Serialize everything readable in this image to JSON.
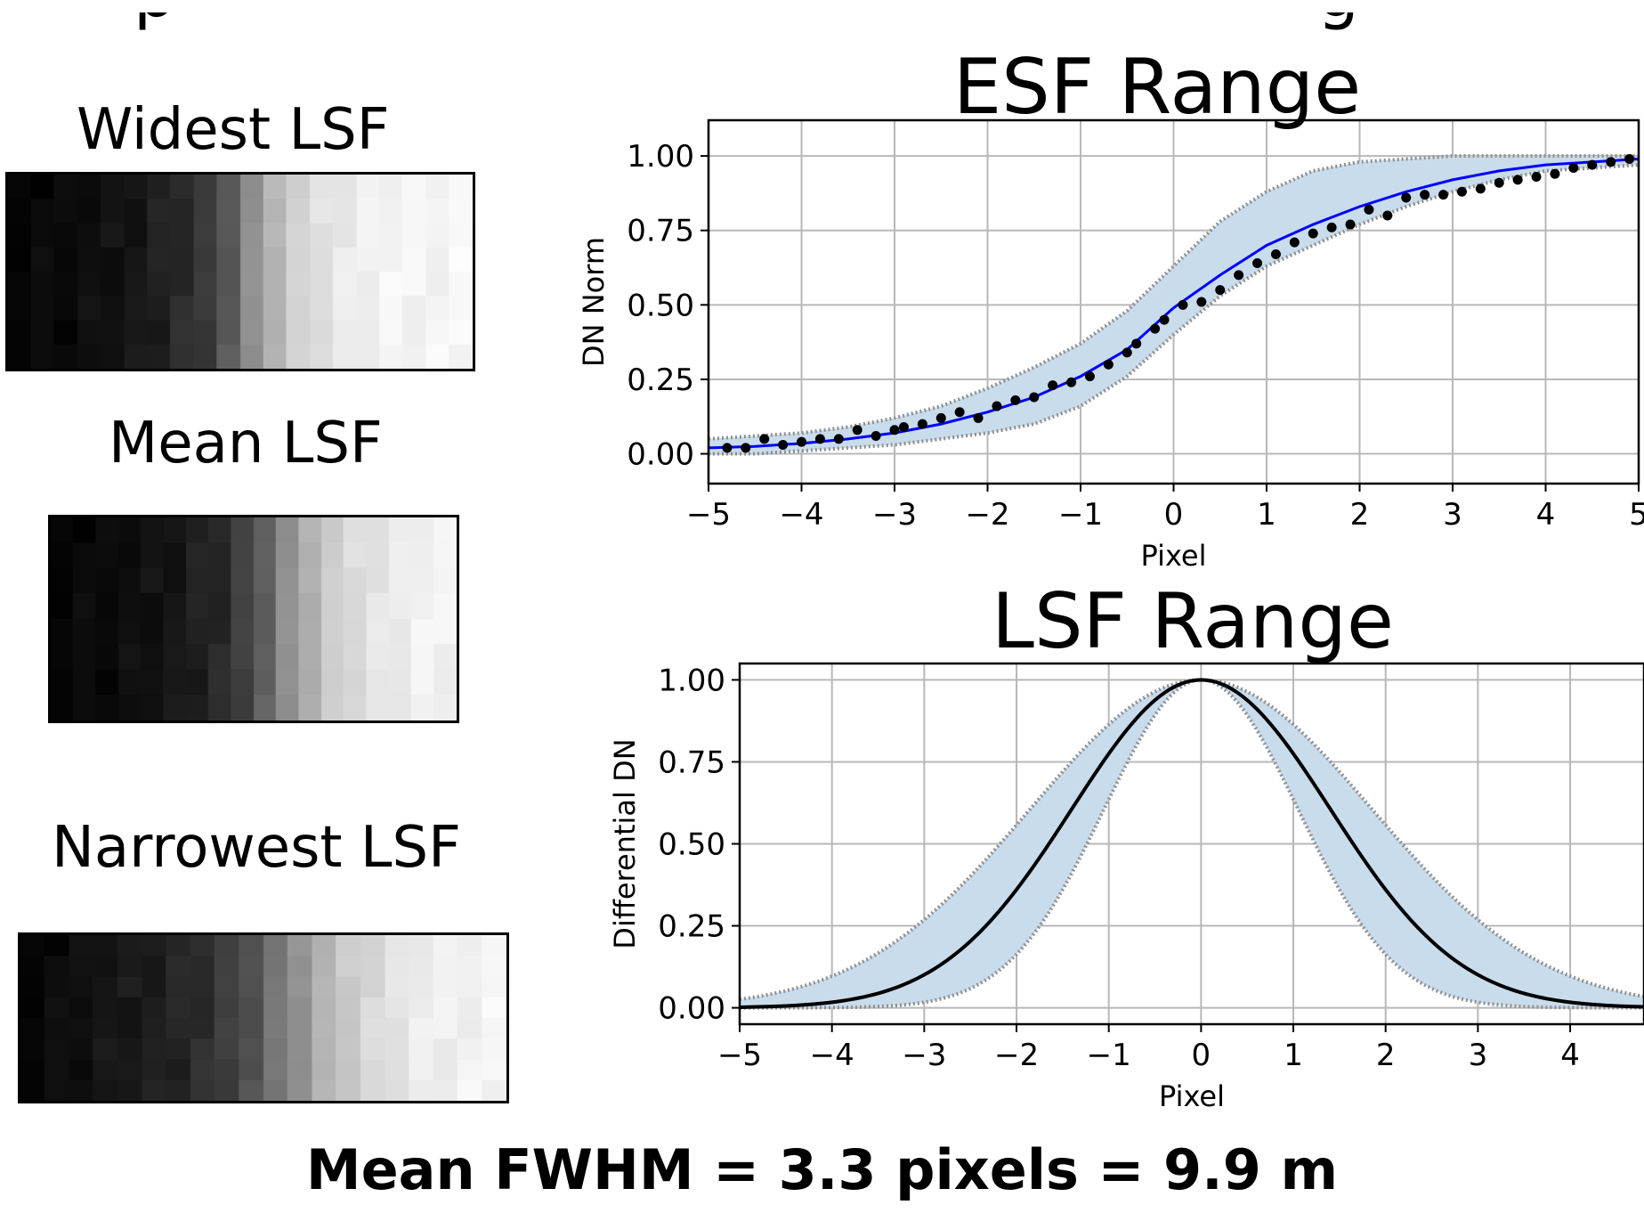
{
  "colors": {
    "band_fill": "#c9dcec",
    "band_edge": "#8f8f8f",
    "fit_line": "#0000ff",
    "lsf_line": "#000000",
    "grid": "#b8b8b8"
  },
  "edge_images": [
    {
      "label": "Widest LSF",
      "columns": [
        0.03,
        0.03,
        0.04,
        0.05,
        0.07,
        0.09,
        0.12,
        0.17,
        0.22,
        0.35,
        0.55,
        0.72,
        0.82,
        0.88,
        0.92,
        0.94,
        0.95,
        0.96,
        0.96,
        0.97
      ]
    },
    {
      "label": "Mean LSF",
      "columns": [
        0.03,
        0.03,
        0.04,
        0.05,
        0.07,
        0.09,
        0.12,
        0.16,
        0.25,
        0.38,
        0.55,
        0.7,
        0.8,
        0.86,
        0.9,
        0.92,
        0.94,
        0.95
      ]
    },
    {
      "label": "Narrowest LSF",
      "columns": [
        0.03,
        0.04,
        0.06,
        0.08,
        0.1,
        0.12,
        0.14,
        0.18,
        0.24,
        0.32,
        0.45,
        0.58,
        0.7,
        0.79,
        0.85,
        0.89,
        0.92,
        0.94,
        0.95,
        0.96
      ]
    }
  ],
  "footer": "Mean FWHM = 3.3 pixels = 9.9 m",
  "chart_data": [
    {
      "type": "line",
      "title": "ESF Range",
      "xlabel": "Pixel",
      "ylabel": "DN Norm",
      "xlim": [
        -5,
        5
      ],
      "ylim": [
        -0.1,
        1.12
      ],
      "xticks": [
        "−5",
        "−4",
        "−3",
        "−2",
        "−1",
        "0",
        "1",
        "2",
        "3",
        "4",
        "5"
      ],
      "yticks": [
        "0.00",
        "0.25",
        "0.50",
        "0.75",
        "1.00"
      ],
      "grid": true,
      "band": {
        "x": [
          -5,
          -4.5,
          -4,
          -3.5,
          -3,
          -2.5,
          -2,
          -1.5,
          -1,
          -0.5,
          0,
          0.5,
          1,
          1.5,
          2,
          2.5,
          3,
          3.5,
          4,
          4.5,
          5
        ],
        "lower": [
          0.0,
          0.0,
          0.01,
          0.02,
          0.03,
          0.05,
          0.07,
          0.1,
          0.16,
          0.26,
          0.4,
          0.53,
          0.63,
          0.7,
          0.77,
          0.83,
          0.88,
          0.92,
          0.95,
          0.96,
          0.97
        ],
        "upper": [
          0.05,
          0.06,
          0.07,
          0.09,
          0.12,
          0.16,
          0.22,
          0.29,
          0.37,
          0.48,
          0.63,
          0.78,
          0.88,
          0.95,
          0.98,
          0.99,
          1.0,
          1.0,
          1.0,
          1.0,
          1.0
        ]
      },
      "fit": {
        "x": [
          -5,
          -4.5,
          -4,
          -3.5,
          -3,
          -2.5,
          -2,
          -1.5,
          -1,
          -0.5,
          0,
          0.5,
          1,
          1.5,
          2,
          2.5,
          3,
          3.5,
          4,
          4.5,
          5
        ],
        "y": [
          0.02,
          0.025,
          0.035,
          0.05,
          0.07,
          0.1,
          0.14,
          0.19,
          0.26,
          0.35,
          0.49,
          0.6,
          0.7,
          0.77,
          0.83,
          0.88,
          0.92,
          0.95,
          0.97,
          0.98,
          0.99
        ]
      },
      "points": {
        "x": [
          -4.8,
          -4.6,
          -4.4,
          -4.2,
          -4.0,
          -3.8,
          -3.6,
          -3.4,
          -3.2,
          -3.0,
          -2.9,
          -2.7,
          -2.5,
          -2.3,
          -2.1,
          -1.9,
          -1.7,
          -1.5,
          -1.3,
          -1.1,
          -0.9,
          -0.7,
          -0.5,
          -0.4,
          -0.2,
          -0.1,
          0.1,
          0.3,
          0.5,
          0.7,
          0.9,
          1.1,
          1.3,
          1.5,
          1.7,
          1.9,
          2.1,
          2.3,
          2.5,
          2.7,
          2.9,
          3.1,
          3.3,
          3.5,
          3.7,
          3.9,
          4.1,
          4.3,
          4.5,
          4.7,
          4.9
        ],
        "y": [
          0.02,
          0.02,
          0.05,
          0.03,
          0.04,
          0.05,
          0.05,
          0.08,
          0.06,
          0.08,
          0.09,
          0.1,
          0.12,
          0.14,
          0.12,
          0.16,
          0.18,
          0.19,
          0.23,
          0.24,
          0.26,
          0.3,
          0.34,
          0.37,
          0.42,
          0.45,
          0.5,
          0.51,
          0.55,
          0.6,
          0.64,
          0.67,
          0.71,
          0.74,
          0.76,
          0.77,
          0.82,
          0.8,
          0.86,
          0.87,
          0.87,
          0.88,
          0.89,
          0.91,
          0.92,
          0.93,
          0.94,
          0.96,
          0.97,
          0.98,
          0.99
        ]
      }
    },
    {
      "type": "line",
      "title": "LSF Range",
      "xlabel": "Pixel",
      "ylabel": "Differential DN",
      "xlim": [
        -5,
        4.8
      ],
      "ylim": [
        -0.05,
        1.05
      ],
      "xticks": [
        "−5",
        "−4",
        "−3",
        "−2",
        "−1",
        "0",
        "1",
        "2",
        "3",
        "4"
      ],
      "yticks": [
        "0.00",
        "0.25",
        "0.50",
        "0.75",
        "1.00"
      ],
      "grid": true,
      "curve": {
        "center": 0,
        "sigma": 1.4,
        "peak": 1.0
      },
      "band": {
        "sigma_low": 1.05,
        "sigma_high": 1.85
      }
    }
  ]
}
